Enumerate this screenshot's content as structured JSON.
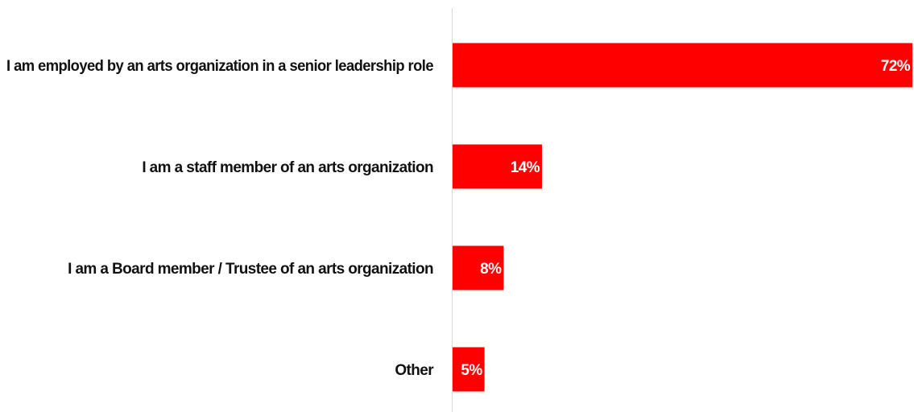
{
  "chart_data": {
    "type": "bar",
    "orientation": "horizontal",
    "categories": [
      "I am employed by an arts organization in a senior leadership role",
      "I am a staff member of an arts organization",
      "I am a Board member / Trustee of an arts organization",
      "Other"
    ],
    "values": [
      72,
      14,
      8,
      5
    ],
    "data_labels": [
      "72%",
      "14%",
      "8%",
      "5%"
    ],
    "xlim": [
      0,
      72
    ],
    "grid": false,
    "legend": "none",
    "bar_color": "#ff0000",
    "label_color": "#ffffff"
  }
}
